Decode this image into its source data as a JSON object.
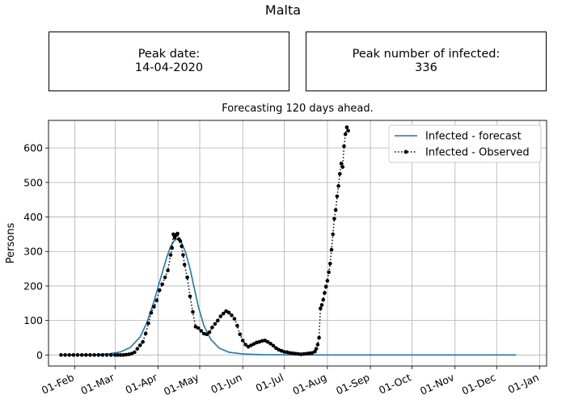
{
  "header": {
    "title": "Malta"
  },
  "peak_date": {
    "label": "Peak date:",
    "value": "14-04-2020"
  },
  "peak_infected": {
    "label": "Peak number of infected:",
    "value": "336"
  },
  "chart_data": {
    "type": "line",
    "title": "Forecasting 120 days ahead.",
    "xlabel": "",
    "ylabel": "Persons",
    "xlim": [
      "2020-01-13",
      "2021-01-06"
    ],
    "ylim": [
      -32,
      680
    ],
    "grid": true,
    "legend_position": "upper-right",
    "x_ticks": [
      "2020-02-01",
      "2020-03-01",
      "2020-04-01",
      "2020-05-01",
      "2020-06-01",
      "2020-07-01",
      "2020-08-01",
      "2020-09-01",
      "2020-10-01",
      "2020-11-01",
      "2020-12-01",
      "2021-01-01"
    ],
    "x_tick_labels": [
      "01-Feb",
      "01-Mar",
      "01-Apr",
      "01-May",
      "01-Jun",
      "01-Jul",
      "01-Aug",
      "01-Sep",
      "01-Oct",
      "01-Nov",
      "01-Dec",
      "01-Jan"
    ],
    "y_ticks": [
      0,
      100,
      200,
      300,
      400,
      500,
      600
    ],
    "y_tick_labels": [
      "0",
      "100",
      "200",
      "300",
      "400",
      "500",
      "600"
    ],
    "series": [
      {
        "name": "Infected - forecast",
        "color": "#1f77b4",
        "style": "solid",
        "x": [
          "2020-01-22",
          "2020-02-15",
          "2020-02-25",
          "2020-03-05",
          "2020-03-12",
          "2020-03-19",
          "2020-03-24",
          "2020-03-29",
          "2020-04-03",
          "2020-04-07",
          "2020-04-10",
          "2020-04-13",
          "2020-04-15",
          "2020-04-18",
          "2020-04-21",
          "2020-04-24",
          "2020-04-27",
          "2020-04-30",
          "2020-05-04",
          "2020-05-09",
          "2020-05-15",
          "2020-05-22",
          "2020-06-01",
          "2020-06-15",
          "2020-07-15",
          "2020-08-15",
          "2020-10-01",
          "2020-12-15"
        ],
        "values": [
          0,
          1,
          3,
          9,
          22,
          52,
          95,
          155,
          225,
          280,
          315,
          333,
          336,
          325,
          295,
          250,
          195,
          140,
          85,
          45,
          20,
          8,
          3,
          1,
          0,
          0,
          0,
          0
        ]
      },
      {
        "name": "Infected - Observed",
        "color": "#000000",
        "style": "dotted",
        "marker": "circle",
        "x": [
          "2020-01-22",
          "2020-01-25",
          "2020-01-28",
          "2020-01-31",
          "2020-02-03",
          "2020-02-06",
          "2020-02-09",
          "2020-02-12",
          "2020-02-15",
          "2020-02-18",
          "2020-02-21",
          "2020-02-24",
          "2020-02-27",
          "2020-03-01",
          "2020-03-03",
          "2020-03-05",
          "2020-03-07",
          "2020-03-09",
          "2020-03-11",
          "2020-03-13",
          "2020-03-15",
          "2020-03-17",
          "2020-03-19",
          "2020-03-21",
          "2020-03-23",
          "2020-03-25",
          "2020-03-27",
          "2020-03-29",
          "2020-03-31",
          "2020-04-02",
          "2020-04-04",
          "2020-04-06",
          "2020-04-08",
          "2020-04-10",
          "2020-04-11",
          "2020-04-12",
          "2020-04-13",
          "2020-04-14",
          "2020-04-15",
          "2020-04-16",
          "2020-04-17",
          "2020-04-18",
          "2020-04-19",
          "2020-04-20",
          "2020-04-22",
          "2020-04-24",
          "2020-04-26",
          "2020-04-28",
          "2020-04-30",
          "2020-05-02",
          "2020-05-04",
          "2020-05-06",
          "2020-05-08",
          "2020-05-10",
          "2020-05-12",
          "2020-05-14",
          "2020-05-16",
          "2020-05-18",
          "2020-05-20",
          "2020-05-22",
          "2020-05-24",
          "2020-05-26",
          "2020-05-28",
          "2020-05-30",
          "2020-06-01",
          "2020-06-03",
          "2020-06-05",
          "2020-06-07",
          "2020-06-09",
          "2020-06-11",
          "2020-06-13",
          "2020-06-15",
          "2020-06-17",
          "2020-06-19",
          "2020-06-21",
          "2020-06-23",
          "2020-06-25",
          "2020-06-27",
          "2020-06-29",
          "2020-07-01",
          "2020-07-03",
          "2020-07-05",
          "2020-07-07",
          "2020-07-09",
          "2020-07-11",
          "2020-07-13",
          "2020-07-15",
          "2020-07-17",
          "2020-07-19",
          "2020-07-21",
          "2020-07-23",
          "2020-07-24",
          "2020-07-25",
          "2020-07-26",
          "2020-07-27",
          "2020-07-28",
          "2020-07-29",
          "2020-07-30",
          "2020-07-31",
          "2020-08-01",
          "2020-08-02",
          "2020-08-03",
          "2020-08-04",
          "2020-08-05",
          "2020-08-06",
          "2020-08-07",
          "2020-08-08",
          "2020-08-09",
          "2020-08-10",
          "2020-08-11",
          "2020-08-12",
          "2020-08-13",
          "2020-08-14",
          "2020-08-15",
          "2020-08-16"
        ],
        "values": [
          0,
          0,
          0,
          0,
          0,
          0,
          0,
          0,
          0,
          0,
          0,
          0,
          0,
          0,
          0,
          0,
          0,
          1,
          2,
          4,
          8,
          18,
          28,
          38,
          62,
          92,
          122,
          140,
          158,
          188,
          205,
          225,
          245,
          290,
          310,
          350,
          340,
          348,
          352,
          336,
          330,
          315,
          290,
          262,
          225,
          170,
          125,
          82,
          78,
          70,
          62,
          60,
          66,
          80,
          90,
          100,
          112,
          120,
          127,
          123,
          115,
          105,
          85,
          60,
          42,
          30,
          24,
          28,
          32,
          36,
          38,
          41,
          42,
          38,
          33,
          27,
          20,
          15,
          12,
          9,
          8,
          6,
          5,
          4,
          3,
          2,
          3,
          4,
          5,
          6,
          10,
          18,
          30,
          50,
          135,
          145,
          160,
          180,
          198,
          215,
          240,
          265,
          305,
          350,
          395,
          420,
          460,
          490,
          525,
          555,
          545,
          605,
          640,
          660,
          650
        ]
      }
    ]
  }
}
